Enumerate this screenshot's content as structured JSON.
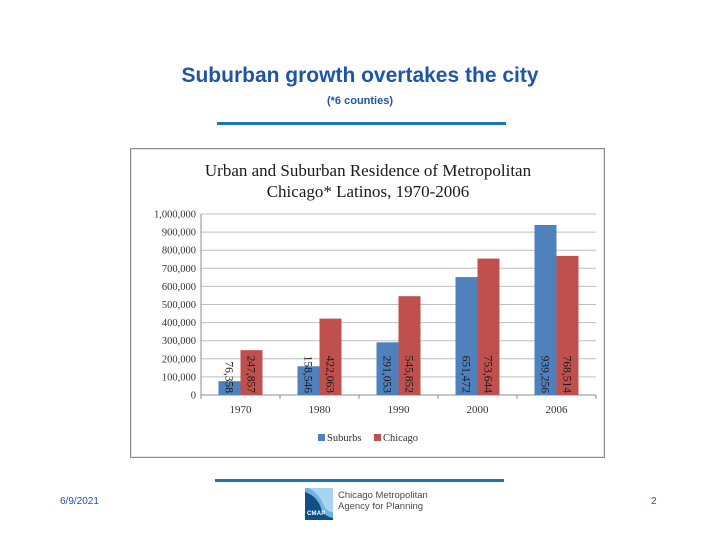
{
  "slide": {
    "title": "Suburban growth overtakes the city",
    "subtitle": "(*6 counties)",
    "date": "6/9/2021",
    "page_number": "2"
  },
  "logo": {
    "abbr": "CMAP",
    "line1": "Chicago Metropolitan",
    "line2": "Agency for Planning"
  },
  "chart_data": {
    "type": "bar",
    "title_line1": "Urban and Suburban Residence of Metropolitan",
    "title_line2": "Chicago* Latinos, 1970-2006",
    "categories": [
      "1970",
      "1980",
      "1990",
      "2000",
      "2006"
    ],
    "series": [
      {
        "name": "Suburbs",
        "color": "#4f81bd",
        "values": [
          76358,
          158546,
          291053,
          651472,
          939256
        ],
        "labels": [
          "76,358",
          "158,546",
          "291,053",
          "651,472",
          "939,256"
        ]
      },
      {
        "name": "Chicago",
        "color": "#c0504d",
        "values": [
          247857,
          422063,
          545852,
          753644,
          768514
        ],
        "labels": [
          "247,857",
          "422,063",
          "545,852",
          "753,644",
          "768,514"
        ]
      }
    ],
    "ylim": [
      0,
      1000000
    ],
    "yticks": [
      0,
      100000,
      200000,
      300000,
      400000,
      500000,
      600000,
      700000,
      800000,
      900000,
      1000000
    ],
    "ytick_labels": [
      "0",
      "100,000",
      "200,000",
      "300,000",
      "400,000",
      "500,000",
      "600,000",
      "700,000",
      "800,000",
      "900,000",
      "1,000,000"
    ],
    "grid": true,
    "legend_position": "bottom"
  }
}
